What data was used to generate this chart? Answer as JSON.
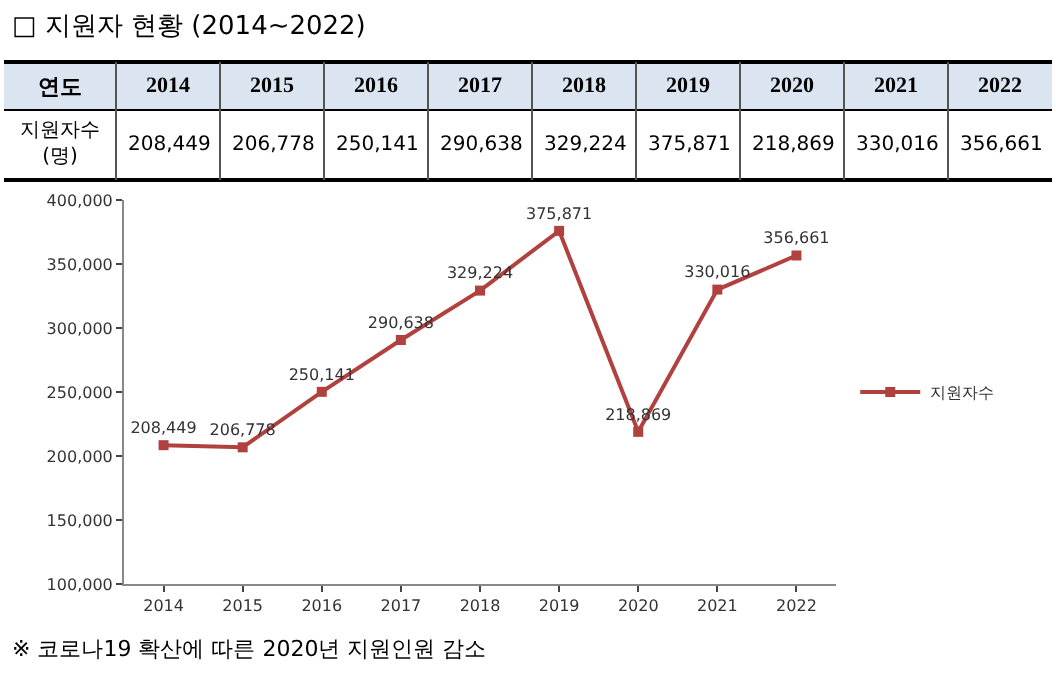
{
  "chart_data": {
    "type": "line",
    "title": "□ 지원자 현황 (2014~2022)",
    "xlabel": "연도",
    "ylabel": "지원자수\n(명)",
    "categories": [
      "2014",
      "2015",
      "2016",
      "2017",
      "2018",
      "2019",
      "2020",
      "2021",
      "2022"
    ],
    "series": [
      {
        "name": "지원자수",
        "color": "#b0413e",
        "values": [
          208449,
          206778,
          250141,
          290638,
          329224,
          375871,
          218869,
          330016,
          356661
        ],
        "value_labels": [
          "208,449",
          "206,778",
          "250,141",
          "290,638",
          "329,224",
          "375,871",
          "218,869",
          "330,016",
          "356,661"
        ]
      }
    ],
    "ylim": [
      100000,
      400000
    ],
    "yticks": [
      {
        "value": 100000,
        "label": "100,000"
      },
      {
        "value": 150000,
        "label": "150,000"
      },
      {
        "value": 200000,
        "label": "200,000"
      },
      {
        "value": 250000,
        "label": "250,000"
      },
      {
        "value": 300000,
        "label": "300,000"
      },
      {
        "value": 350000,
        "label": "350,000"
      },
      {
        "value": 400000,
        "label": "400,000"
      }
    ],
    "marker": "square",
    "line_style": "solid",
    "legend": "right",
    "grid": false,
    "annotations": [
      "※ 코로나19 확산에 따른 2020년 지원인원 감소"
    ]
  }
}
